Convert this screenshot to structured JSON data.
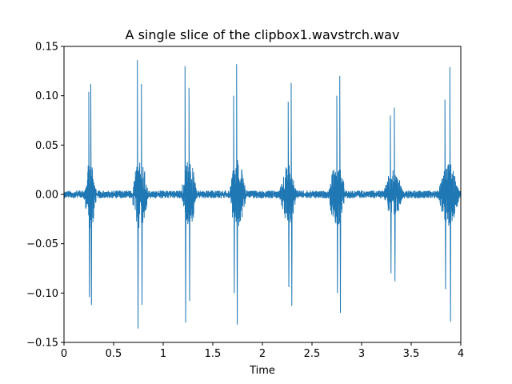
{
  "chart_data": {
    "type": "line",
    "title": "A single slice of the clipbox1.wavstrch.wav",
    "xlabel": "Time",
    "ylabel": "",
    "xlim": [
      0,
      4
    ],
    "ylim": [
      -0.15,
      0.15
    ],
    "x_ticks": [
      0,
      0.5,
      1,
      1.5,
      2,
      2.5,
      3,
      3.5,
      4
    ],
    "x_tick_labels": [
      "0",
      "0.5",
      "1",
      "1.5",
      "2",
      "2.5",
      "3",
      "3.5",
      "4"
    ],
    "y_ticks": [
      -0.15,
      -0.1,
      -0.05,
      0.0,
      0.05,
      0.1,
      0.15
    ],
    "y_tick_labels": [
      "−0.15",
      "−0.10",
      "−0.05",
      "0.00",
      "0.05",
      "0.10",
      "0.15"
    ],
    "grid": false,
    "line_color": "#1f77b4",
    "noise_floor": 0.004,
    "bursts": [
      {
        "start": 0.2,
        "end": 0.33,
        "peak_time": 0.25,
        "peak_pos": 0.104,
        "peak_neg": -0.104,
        "peak2_time": 0.27,
        "peak2_pos": 0.112,
        "peak2_neg": -0.112,
        "envelope": 0.035
      },
      {
        "start": 0.68,
        "end": 0.85,
        "peak_time": 0.74,
        "peak_pos": 0.136,
        "peak_neg": -0.136,
        "peak2_time": 0.78,
        "peak2_pos": 0.112,
        "peak2_neg": -0.112,
        "envelope": 0.035
      },
      {
        "start": 1.18,
        "end": 1.34,
        "peak_time": 1.22,
        "peak_pos": 0.13,
        "peak_neg": -0.13,
        "peak2_time": 1.26,
        "peak2_pos": 0.108,
        "peak2_neg": -0.108,
        "envelope": 0.035
      },
      {
        "start": 1.66,
        "end": 1.84,
        "peak_time": 1.74,
        "peak_pos": 0.132,
        "peak_neg": -0.132,
        "peak2_time": 1.71,
        "peak2_pos": 0.1,
        "peak2_neg": -0.1,
        "envelope": 0.035
      },
      {
        "start": 2.17,
        "end": 2.35,
        "peak_time": 2.29,
        "peak_pos": 0.113,
        "peak_neg": -0.113,
        "peak2_time": 2.26,
        "peak2_pos": 0.094,
        "peak2_neg": -0.094,
        "envelope": 0.03
      },
      {
        "start": 2.66,
        "end": 2.84,
        "peak_time": 2.78,
        "peak_pos": 0.12,
        "peak_neg": -0.12,
        "peak2_time": 2.75,
        "peak2_pos": 0.1,
        "peak2_neg": -0.1,
        "envelope": 0.032
      },
      {
        "start": 3.22,
        "end": 3.42,
        "peak_time": 3.33,
        "peak_pos": 0.088,
        "peak_neg": -0.088,
        "peak2_time": 3.29,
        "peak2_pos": 0.08,
        "peak2_neg": -0.08,
        "envelope": 0.025
      },
      {
        "start": 3.77,
        "end": 3.99,
        "peak_time": 3.89,
        "peak_pos": 0.129,
        "peak_neg": -0.129,
        "peak2_time": 3.84,
        "peak2_pos": 0.096,
        "peak2_neg": -0.096,
        "envelope": 0.032
      }
    ]
  }
}
